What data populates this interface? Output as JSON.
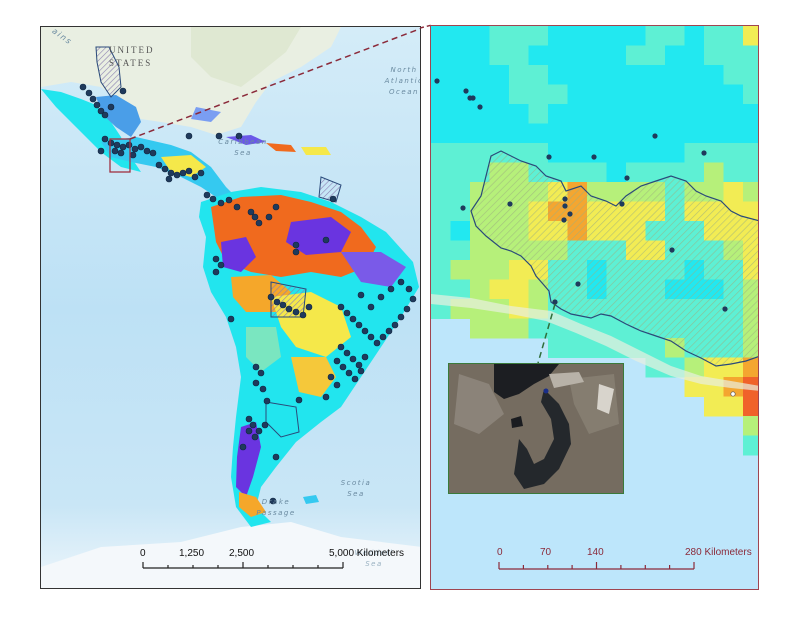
{
  "left_map": {
    "labels": {
      "country_us_line1": "UNITED",
      "country_us_line2": "STATES",
      "mountains_fragment": "ains",
      "north_atlantic_line1": "North",
      "north_atlantic_line2": "Atlantic",
      "north_atlantic_line3": "Ocean",
      "caribbean_line1": "Caribbean",
      "caribbean_line2": "Sea",
      "scotia_line1": "Scotia",
      "scotia_line2": "Sea",
      "drake_line1": "Drake",
      "drake_line2": "Passage",
      "weddell_line1": "Weddell",
      "weddell_line2": "Sea"
    },
    "scale_bar": {
      "ticks": [
        "0",
        "1,250",
        "2,500",
        "5,000 Kilometers"
      ],
      "color": "#222222"
    },
    "inset_box_color": "#a03040"
  },
  "right_map": {
    "scale_bar": {
      "ticks": [
        "0",
        "70",
        "140",
        "280 Kilometers"
      ],
      "color": "#8b2a3a"
    },
    "border_color": "#a04550",
    "photo_inset_border": "#3a7a3a",
    "connector_color": "#2f6e3a"
  },
  "connector": {
    "color": "#8b2a3a",
    "style": "dashed"
  },
  "colors": {
    "ocean": "#bfe3f7",
    "points": "#1f3a5c",
    "basin_outline": "#2a4a7a",
    "raster_low": "#22e5ee",
    "raster_mid": "#f5e84a",
    "raster_high": "#f06a1e",
    "raster_max": "#6a34e0"
  }
}
